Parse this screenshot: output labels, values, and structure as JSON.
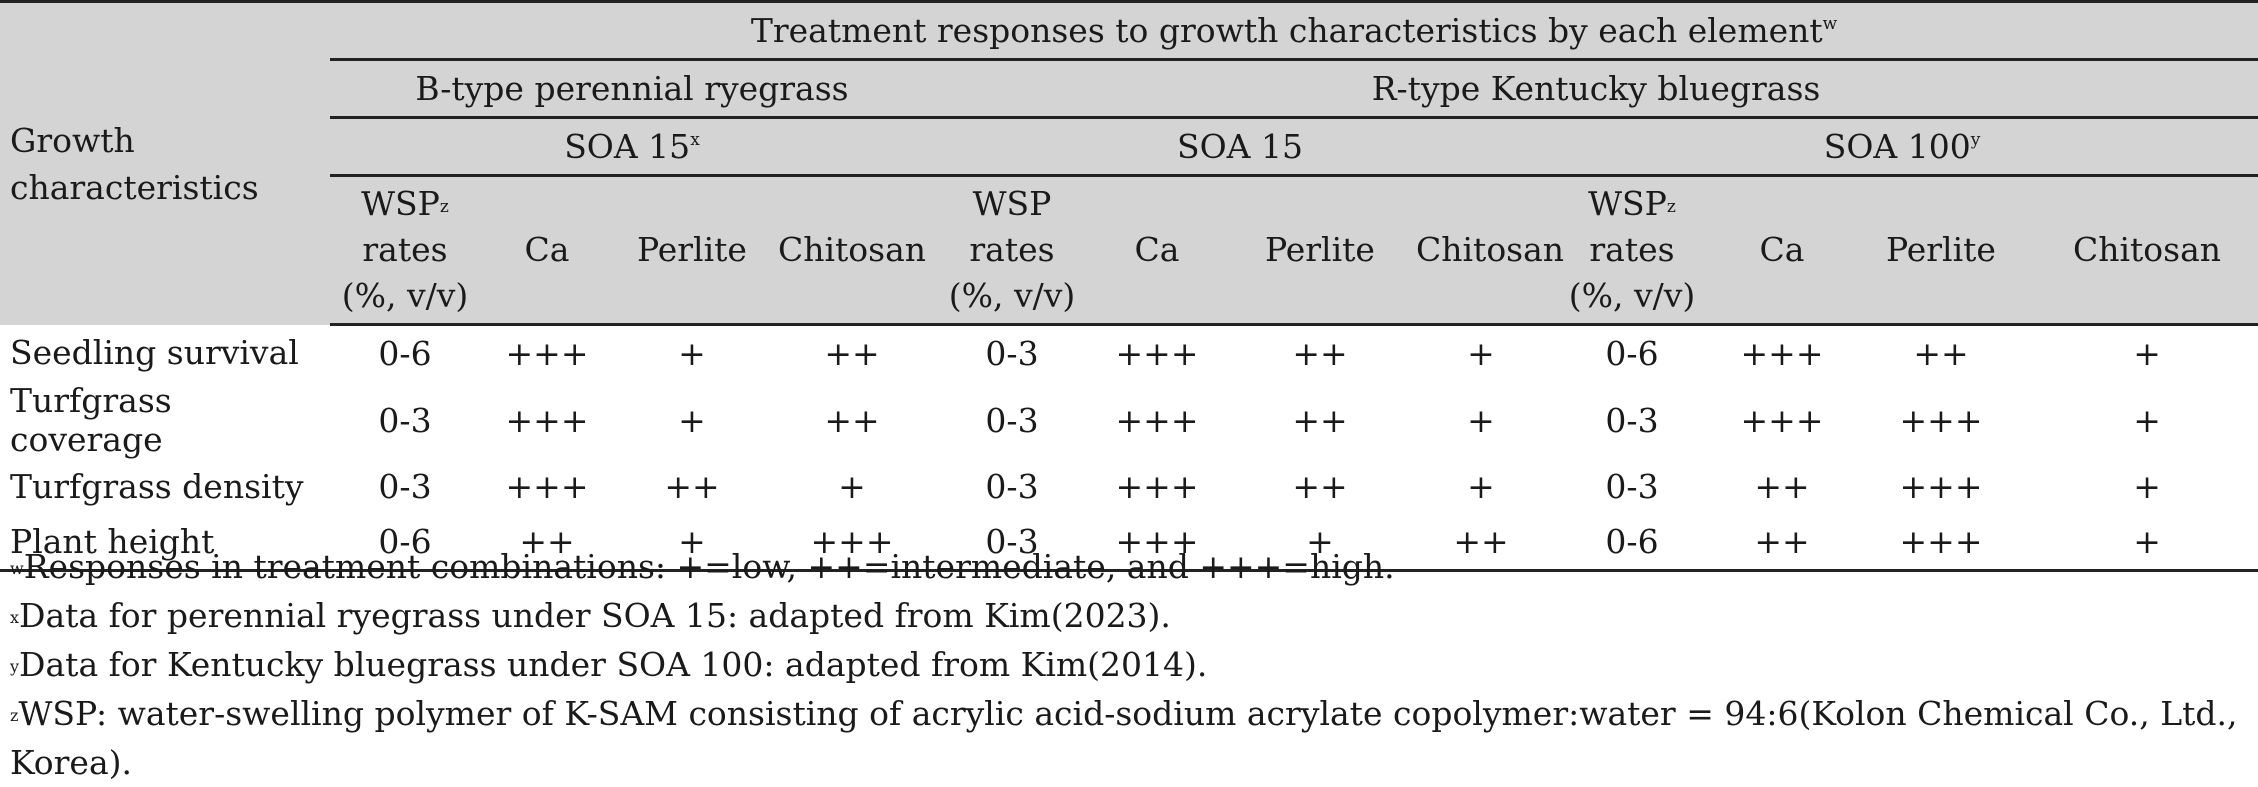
{
  "table": {
    "row_header": "Growth characteristics",
    "span_header": {
      "text": "Treatment responses to growth characteristics by each element",
      "note": "w"
    },
    "species": [
      {
        "label": "B-type perennial ryegrass"
      },
      {
        "label": "R-type Kentucky bluegrass"
      }
    ],
    "soa": [
      {
        "label": "SOA 15",
        "note": "x"
      },
      {
        "label": "SOA 15",
        "note": ""
      },
      {
        "label": "SOA 100",
        "note": "y"
      }
    ],
    "columns": [
      {
        "line1": "WSP",
        "note": "z",
        "line2": "rates",
        "line3": "(%, v/v)"
      },
      {
        "label": "Ca"
      },
      {
        "label": "Perlite"
      },
      {
        "label": "Chitosan"
      },
      {
        "line1": "WSP",
        "note": "",
        "line2": "rates",
        "line3": "(%, v/v)"
      },
      {
        "label": "Ca"
      },
      {
        "label": "Perlite"
      },
      {
        "label": "Chitosan"
      },
      {
        "line1": "WSP",
        "note": "z",
        "line2": "rates",
        "line3": "(%, v/v)"
      },
      {
        "label": "Ca"
      },
      {
        "label": "Perlite"
      },
      {
        "label": "Chitosan"
      }
    ],
    "rows": [
      {
        "label": "Seedling survival",
        "cells": [
          "0-6",
          "+++",
          "+",
          "++",
          "0-3",
          "+++",
          "++",
          "+",
          "0-6",
          "+++",
          "++",
          "+"
        ]
      },
      {
        "label": "Turfgrass coverage",
        "cells": [
          "0-3",
          "+++",
          "+",
          "++",
          "0-3",
          "+++",
          "++",
          "+",
          "0-3",
          "+++",
          "+++",
          "+"
        ]
      },
      {
        "label": "Turfgrass density",
        "cells": [
          "0-3",
          "+++",
          "++",
          "+",
          "0-3",
          "+++",
          "++",
          "+",
          "0-3",
          "++",
          "+++",
          "+"
        ]
      },
      {
        "label": "Plant height",
        "cells": [
          "0-6",
          "++",
          "+",
          "+++",
          "0-3",
          "+++",
          "+",
          "++",
          "0-6",
          "++",
          "+++",
          "+"
        ]
      }
    ]
  },
  "footnotes": [
    {
      "mark": "w",
      "text": "Responses in treatment combinations: +=low, ++=intermediate, and +++=high."
    },
    {
      "mark": "x",
      "text": "Data for perennial ryegrass under SOA 15: adapted from Kim(2023)."
    },
    {
      "mark": "y",
      "text": "Data for Kentucky bluegrass under SOA 100: adapted from Kim(2014)."
    },
    {
      "mark": "z",
      "text": "WSP: water-swelling polymer of K-SAM consisting of acrylic acid-sodium acrylate copolymer:water = 94:6(Kolon Chemical Co., Ltd., Korea)."
    }
  ]
}
